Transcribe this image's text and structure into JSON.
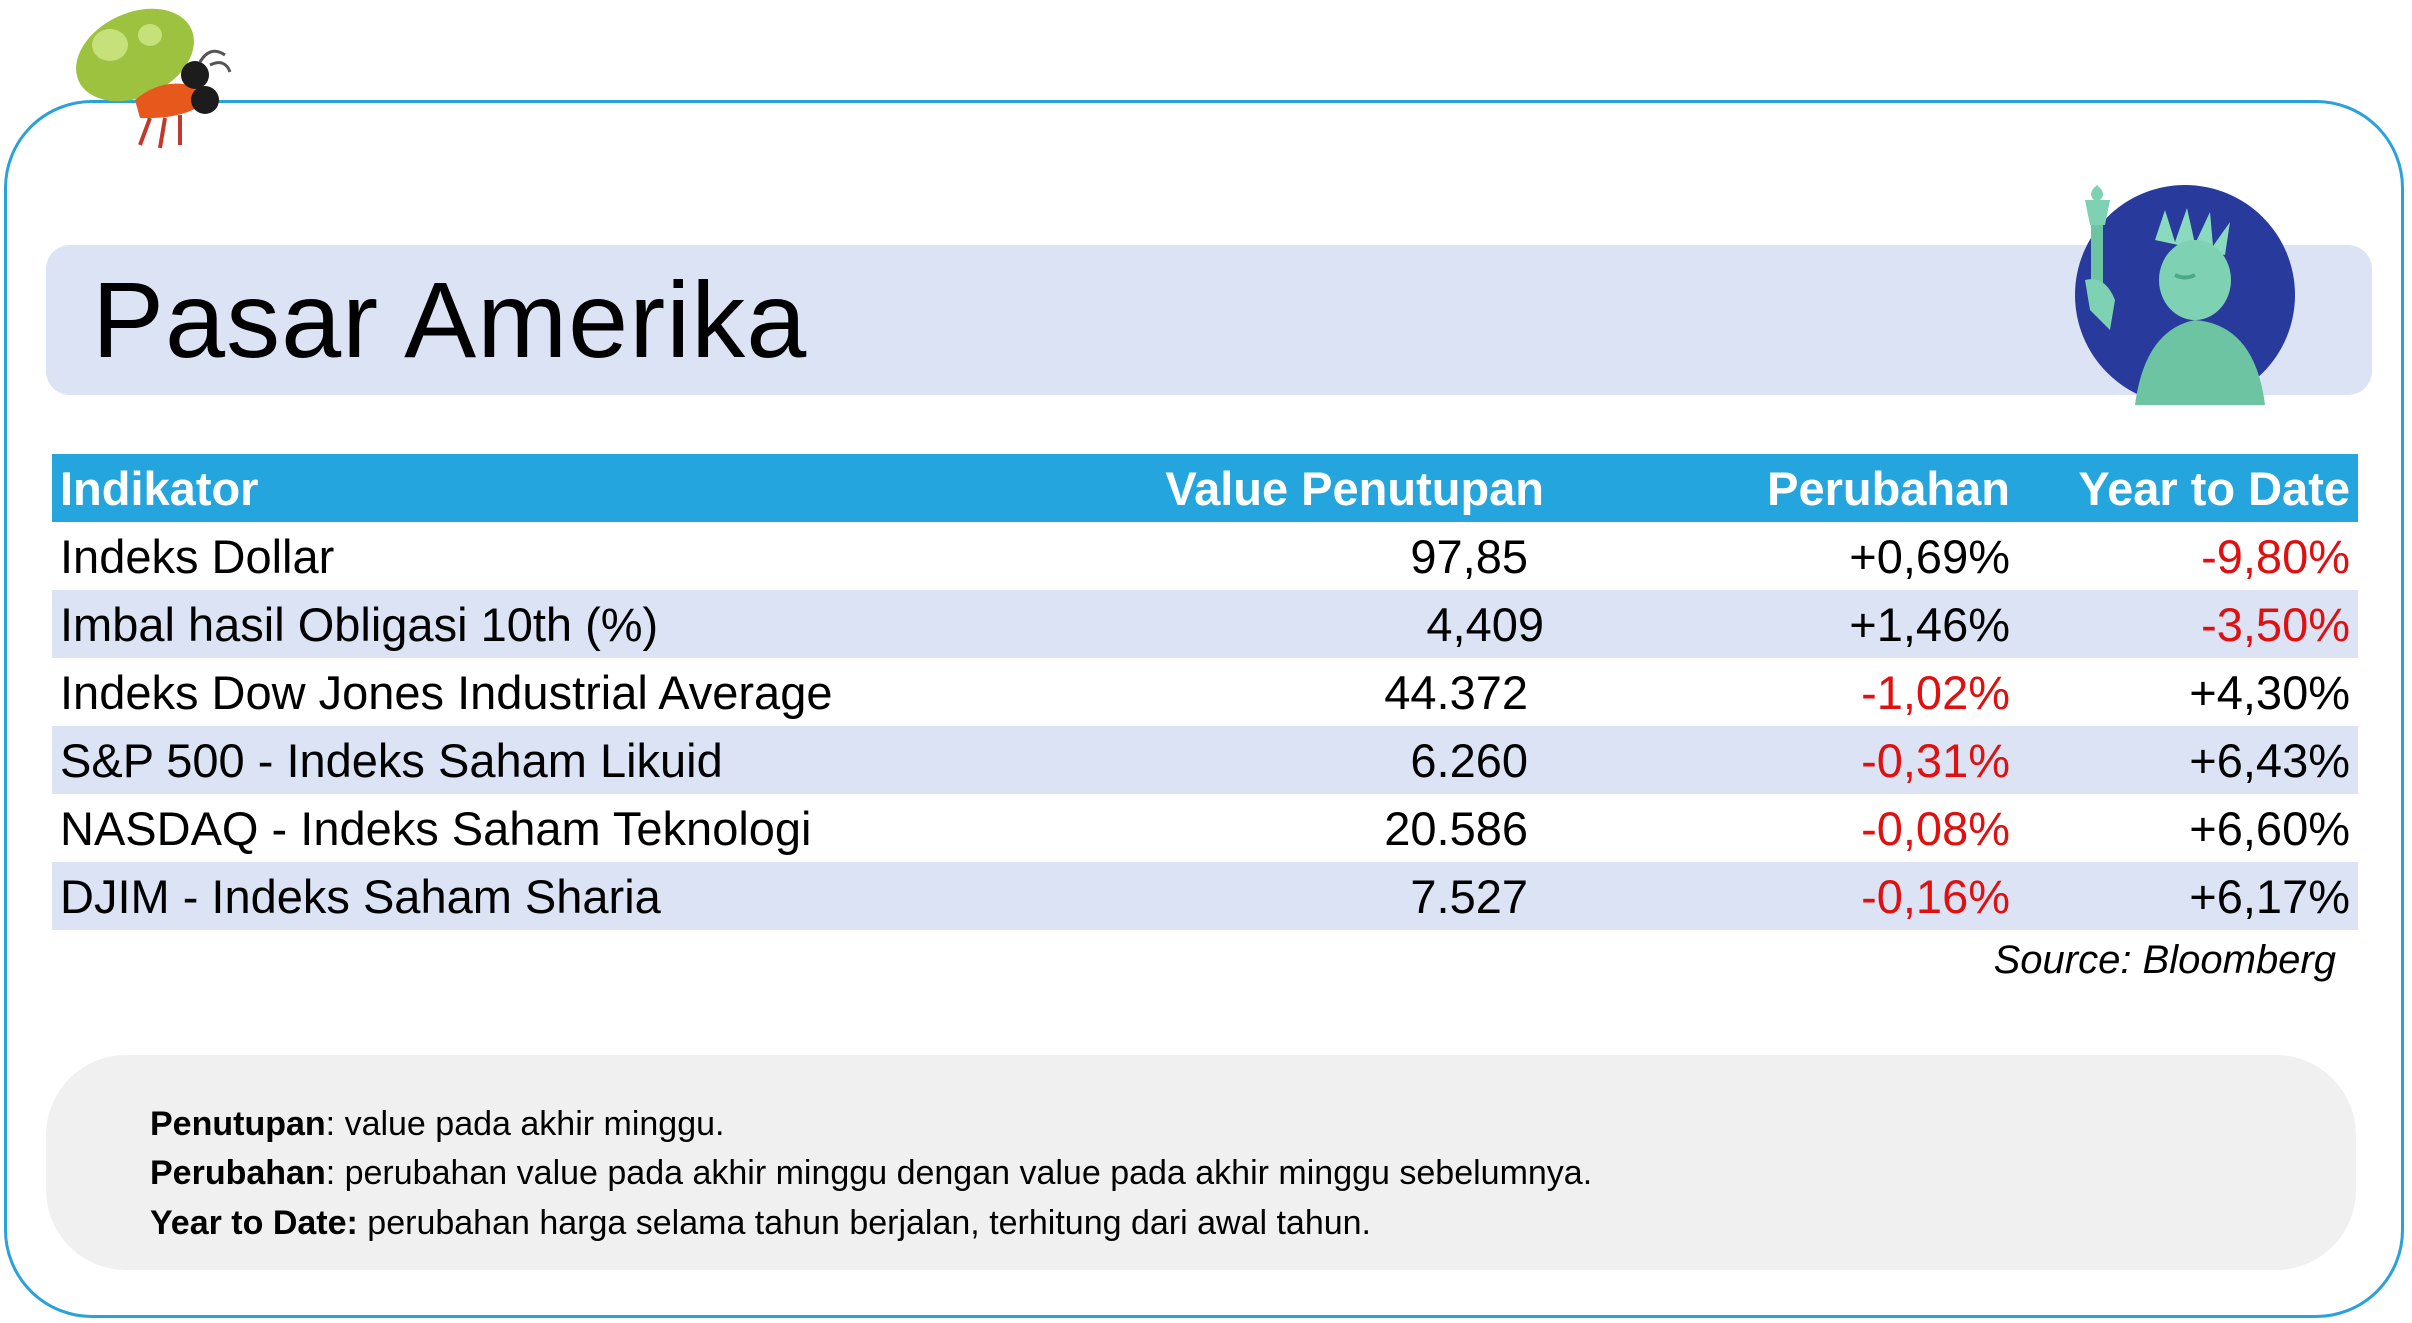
{
  "header": {
    "title": "Pasar Amerika"
  },
  "table": {
    "columns": [
      "Indikator",
      "Value Penutupan",
      "Perubahan",
      "Year to Date"
    ],
    "rows": [
      {
        "indicator": "Indeks Dollar",
        "value": "97,85",
        "change": "+0,69%",
        "ytd": "-9,80%"
      },
      {
        "indicator": "Imbal hasil Obligasi 10th (%)",
        "value": "4,409",
        "change": "+1,46%",
        "ytd": "-3,50%"
      },
      {
        "indicator": "Indeks Dow Jones Industrial Average",
        "value": "44.372",
        "change": "-1,02%",
        "ytd": "+4,30%"
      },
      {
        "indicator": "S&P 500 - Indeks Saham Likuid",
        "value": "6.260",
        "change": "-0,31%",
        "ytd": "+6,43%"
      },
      {
        "indicator": "NASDAQ - Indeks Saham Teknologi",
        "value": "20.586",
        "change": "-0,08%",
        "ytd": "+6,60%"
      },
      {
        "indicator": "DJIM - Indeks Saham Sharia",
        "value": "7.527",
        "change": "-0,16%",
        "ytd": "+6,17%"
      }
    ]
  },
  "source": "Source: Bloomberg",
  "notes": [
    {
      "term": "Penutupan",
      "text": ": value pada akhir minggu."
    },
    {
      "term": "Perubahan",
      "text": ": perubahan value pada akhir minggu dengan value pada akhir minggu sebelumnya."
    },
    {
      "term": "Year to Date:",
      "text": " perubahan harga selama tahun berjalan, terhitung dari awal tahun."
    }
  ],
  "colors": {
    "accent": "#24a5dd",
    "band": "#dbe3f4",
    "negative": "#e01010"
  },
  "icons": [
    "bug-mascot-icon",
    "statue-of-liberty-icon"
  ]
}
